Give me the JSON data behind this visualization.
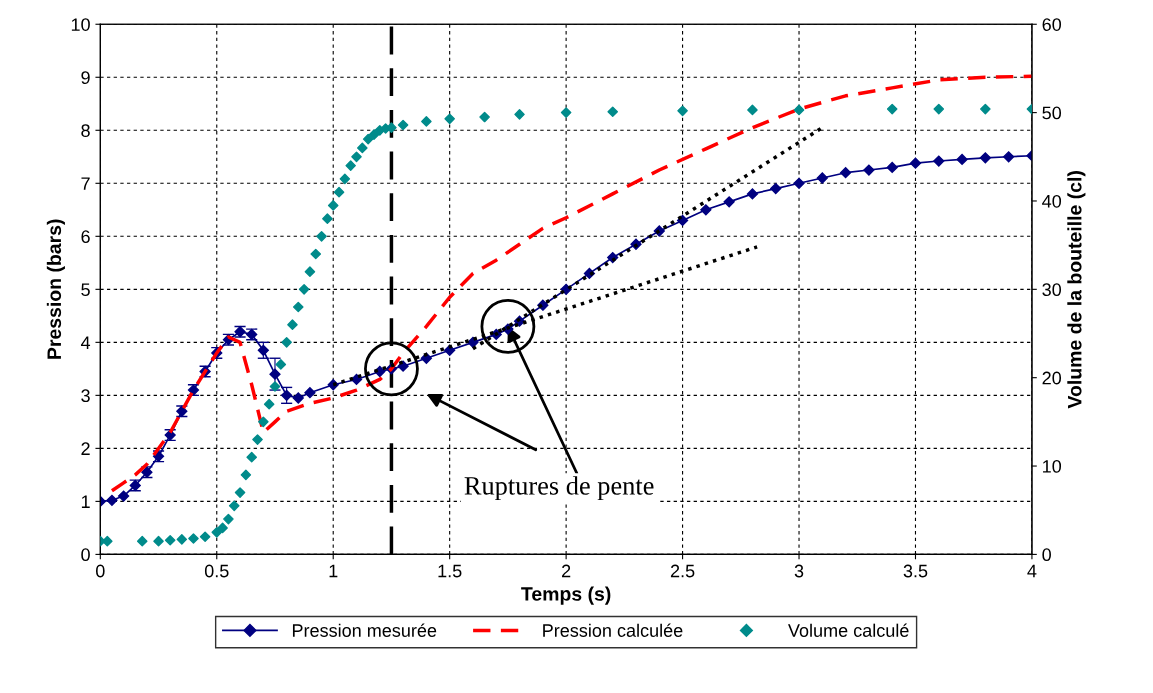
{
  "chart_data": {
    "type": "line",
    "xlabel": "Temps (s)",
    "ylabel": "Pression (bars)",
    "y2label": "Volume de la bouteille (cl)",
    "xlim": [
      0,
      4
    ],
    "xticks": [
      0,
      0.5,
      1,
      1.5,
      2,
      2.5,
      3,
      3.5,
      4
    ],
    "ylim": [
      0,
      10
    ],
    "yticks": [
      0,
      1,
      2,
      3,
      4,
      5,
      6,
      7,
      8,
      9,
      10
    ],
    "y2lim": [
      0,
      60
    ],
    "y2ticks": [
      0,
      10,
      20,
      30,
      40,
      50,
      60
    ],
    "grid": true,
    "legend": "bottom",
    "series": [
      {
        "name": "Pression mesurée",
        "color": "#000080",
        "marker": "diamond",
        "line_style": "solid",
        "x": [
          0,
          0.05,
          0.1,
          0.15,
          0.2,
          0.25,
          0.3,
          0.35,
          0.4,
          0.45,
          0.5,
          0.55,
          0.6,
          0.65,
          0.7,
          0.75,
          0.8,
          0.85,
          0.9,
          1.0,
          1.1,
          1.2,
          1.25,
          1.3,
          1.4,
          1.5,
          1.6,
          1.7,
          1.75,
          1.8,
          1.9,
          2.0,
          2.1,
          2.2,
          2.3,
          2.4,
          2.5,
          2.6,
          2.7,
          2.8,
          2.9,
          3.0,
          3.1,
          3.2,
          3.3,
          3.4,
          3.5,
          3.6,
          3.7,
          3.8,
          3.9,
          4.0
        ],
        "values": [
          1.0,
          1.02,
          1.1,
          1.3,
          1.55,
          1.85,
          2.25,
          2.7,
          3.1,
          3.45,
          3.8,
          4.05,
          4.2,
          4.15,
          3.85,
          3.4,
          3.0,
          2.95,
          3.05,
          3.2,
          3.3,
          3.45,
          3.5,
          3.55,
          3.7,
          3.85,
          4.0,
          4.15,
          4.25,
          4.4,
          4.7,
          5.0,
          5.3,
          5.6,
          5.85,
          6.1,
          6.3,
          6.5,
          6.65,
          6.8,
          6.9,
          7.0,
          7.1,
          7.2,
          7.25,
          7.3,
          7.38,
          7.42,
          7.45,
          7.48,
          7.5,
          7.52
        ],
        "errors": [
          null,
          null,
          null,
          0.1,
          0.1,
          0.1,
          0.1,
          0.1,
          0.1,
          0.1,
          0.1,
          0.1,
          0.1,
          0.1,
          0.15,
          0.3,
          0.15,
          null,
          null,
          null,
          null,
          null,
          null,
          null,
          null,
          null,
          null,
          null,
          null,
          null,
          null,
          null,
          null,
          null,
          null,
          null,
          null,
          null,
          null,
          null,
          null,
          null,
          null,
          null,
          null,
          null,
          null,
          null,
          null,
          null,
          null,
          null
        ]
      },
      {
        "name": "Pression calculée",
        "color": "#ff0000",
        "marker": "none",
        "line_style": "dashed",
        "x": [
          0.05,
          0.1,
          0.15,
          0.2,
          0.3,
          0.4,
          0.5,
          0.55,
          0.6,
          0.65,
          0.7,
          0.75,
          0.8,
          0.9,
          1.0,
          1.1,
          1.2,
          1.25,
          1.3,
          1.4,
          1.5,
          1.6,
          1.7,
          1.8,
          1.9,
          2.0,
          2.2,
          2.4,
          2.6,
          2.8,
          3.0,
          3.2,
          3.4,
          3.6,
          3.8,
          4.0
        ],
        "values": [
          1.2,
          1.35,
          1.5,
          1.7,
          2.3,
          3.1,
          3.8,
          4.1,
          4.0,
          3.2,
          2.3,
          2.5,
          2.7,
          2.85,
          2.95,
          3.1,
          3.3,
          3.5,
          3.8,
          4.3,
          4.85,
          5.3,
          5.55,
          5.85,
          6.15,
          6.35,
          6.8,
          7.25,
          7.65,
          8.05,
          8.4,
          8.65,
          8.8,
          8.95,
          9.0,
          9.02
        ]
      },
      {
        "name": "Volume calculé",
        "type": "scatter",
        "axis": "y2",
        "color": "#008b8b",
        "marker": "diamond",
        "x": [
          0,
          0.03,
          0.18,
          0.25,
          0.3,
          0.35,
          0.4,
          0.45,
          0.5,
          0.525,
          0.55,
          0.575,
          0.6,
          0.625,
          0.65,
          0.675,
          0.7,
          0.725,
          0.75,
          0.775,
          0.8,
          0.825,
          0.85,
          0.875,
          0.9,
          0.925,
          0.95,
          0.975,
          1.0,
          1.025,
          1.05,
          1.075,
          1.1,
          1.125,
          1.15,
          1.175,
          1.2,
          1.225,
          1.25,
          1.3,
          1.4,
          1.5,
          1.65,
          1.8,
          2.0,
          2.2,
          2.5,
          2.8,
          3.0,
          3.4,
          3.6,
          3.8,
          4.0
        ],
        "values": [
          1.5,
          1.5,
          1.5,
          1.5,
          1.6,
          1.7,
          1.8,
          2.0,
          2.5,
          3.0,
          4.0,
          5.5,
          7.0,
          9.0,
          11.0,
          13.0,
          15.0,
          17.0,
          19.0,
          21.5,
          24.0,
          26.0,
          28.0,
          30.0,
          32.0,
          34.0,
          36.0,
          38.0,
          39.5,
          41.0,
          42.5,
          44.0,
          45.0,
          46.0,
          47.0,
          47.5,
          48.0,
          48.2,
          48.3,
          48.6,
          49.0,
          49.3,
          49.5,
          49.8,
          50.0,
          50.1,
          50.2,
          50.3,
          50.3,
          50.4,
          50.4,
          50.4,
          50.4
        ]
      },
      {
        "color": "#000000",
        "marker": "none",
        "line_style": "dotted",
        "x": [
          1.0,
          2.82
        ],
        "values": [
          3.2,
          5.8
        ]
      },
      {
        "color": "#000000",
        "marker": "none",
        "line_style": "dotted",
        "x": [
          1.6,
          3.1
        ],
        "values": [
          3.88,
          8.05
        ]
      }
    ],
    "ref_lines": [
      {
        "axis": "x",
        "value": 1.25,
        "color": "#000000",
        "line_style": "dashed"
      }
    ],
    "annotations": [
      {
        "text": "Ruptures de pente",
        "x": 1.75,
        "y": 4.3
      }
    ]
  }
}
